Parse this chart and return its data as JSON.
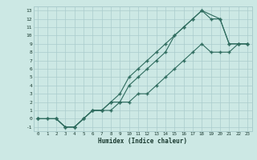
{
  "xlabel": "Humidex (Indice chaleur)",
  "bg_color": "#cce8e4",
  "grid_color": "#aacccc",
  "line_color": "#2e6b5e",
  "xlim": [
    -0.5,
    23.5
  ],
  "ylim": [
    -1.5,
    13.5
  ],
  "xticks": [
    0,
    1,
    2,
    3,
    4,
    5,
    6,
    7,
    8,
    9,
    10,
    11,
    12,
    13,
    14,
    15,
    16,
    17,
    18,
    19,
    20,
    21,
    22,
    23
  ],
  "yticks": [
    -1,
    0,
    1,
    2,
    3,
    4,
    5,
    6,
    7,
    8,
    9,
    10,
    11,
    12,
    13
  ],
  "line1_x": [
    0,
    1,
    2,
    3,
    4,
    5,
    6,
    7,
    8,
    9,
    10,
    11,
    12,
    13,
    14,
    15,
    16,
    17,
    18,
    20,
    21,
    22,
    23
  ],
  "line1_y": [
    0,
    0,
    0,
    -1,
    -1,
    0,
    1,
    1,
    2,
    3,
    5,
    6,
    7,
    8,
    9,
    10,
    11,
    12,
    13,
    12,
    9,
    9,
    9
  ],
  "line2_x": [
    0,
    1,
    2,
    3,
    4,
    5,
    6,
    7,
    8,
    9,
    10,
    11,
    12,
    13,
    14,
    15,
    16,
    17,
    18,
    19,
    20,
    21,
    22,
    23
  ],
  "line2_y": [
    0,
    0,
    0,
    -1,
    -1,
    0,
    1,
    1,
    2,
    2,
    4,
    5,
    6,
    7,
    8,
    10,
    11,
    12,
    13,
    12,
    12,
    9,
    9,
    9
  ],
  "line3_x": [
    0,
    2,
    3,
    4,
    5,
    6,
    7,
    8,
    9,
    10,
    11,
    12,
    13,
    14,
    15,
    16,
    17,
    18,
    19,
    20,
    21,
    22,
    23
  ],
  "line3_y": [
    0,
    0,
    -1,
    -1,
    0,
    1,
    1,
    1,
    2,
    2,
    3,
    3,
    4,
    5,
    6,
    7,
    8,
    9,
    8,
    8,
    8,
    9,
    9
  ]
}
